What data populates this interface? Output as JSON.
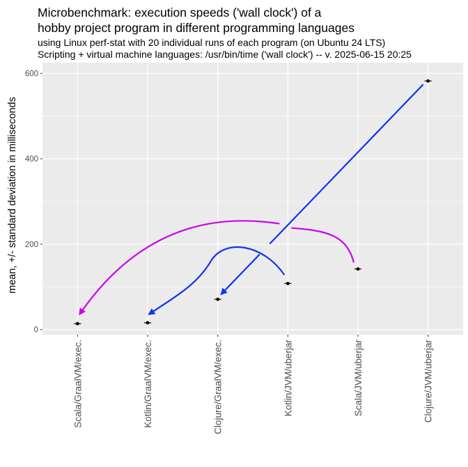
{
  "title_line1": "Microbenchmark: execution speeds ('wall clock') of a",
  "title_line2": "hobby project program in different programming languages",
  "subtitle_line1": "using Linux perf-stat with 20 individual runs of each program (on Ubuntu 24 LTS)",
  "subtitle_line2": "Scripting + virtual machine languages: /usr/bin/time ('wall clock') -- v. 2025-06-15 20:25",
  "chart_data": {
    "type": "scatter",
    "title": "Microbenchmark: execution speeds ('wall clock') of a hobby project program in different programming languages",
    "subtitle": "using Linux perf-stat with 20 individual runs of each program (on Ubuntu 24 LTS) / Scripting + virtual machine languages: /usr/bin/time ('wall clock') -- v. 2025-06-15 20:25",
    "xlabel": "",
    "ylabel": "mean, +/- standard deviation in milliseconds",
    "categories": [
      "Scala/GraalVM/exec.",
      "Kotlin/GraalVM/exec.",
      "Clojure/GraalVM/exec.",
      "Kotlin/JVM/uberjar",
      "Scala/JVM/uberjar",
      "Clojure/JVM/uberjar"
    ],
    "values": [
      14,
      16,
      71,
      108,
      142,
      582
    ],
    "ylim": [
      -12,
      625
    ],
    "yticks": [
      0,
      200,
      400,
      600
    ],
    "grid": true,
    "annotations": [
      {
        "type": "curved-arrow",
        "from": "Scala/JVM/uberjar",
        "to": "Scala/GraalVM/exec.",
        "color": "#cc00ee"
      },
      {
        "type": "curved-arrow",
        "from": "Kotlin/JVM/uberjar",
        "to": "Kotlin/GraalVM/exec.",
        "color": "#1133ee"
      },
      {
        "type": "straight-arrow",
        "from": "Clojure/JVM/uberjar",
        "to": "Clojure/GraalVM/exec.",
        "color": "#1133ee"
      }
    ],
    "colors": {
      "panel": "#ebebeb",
      "grid": "#ffffff",
      "point": "#000000",
      "purple_arrow": "#cc00ee",
      "blue_arrow": "#1133ee"
    }
  }
}
